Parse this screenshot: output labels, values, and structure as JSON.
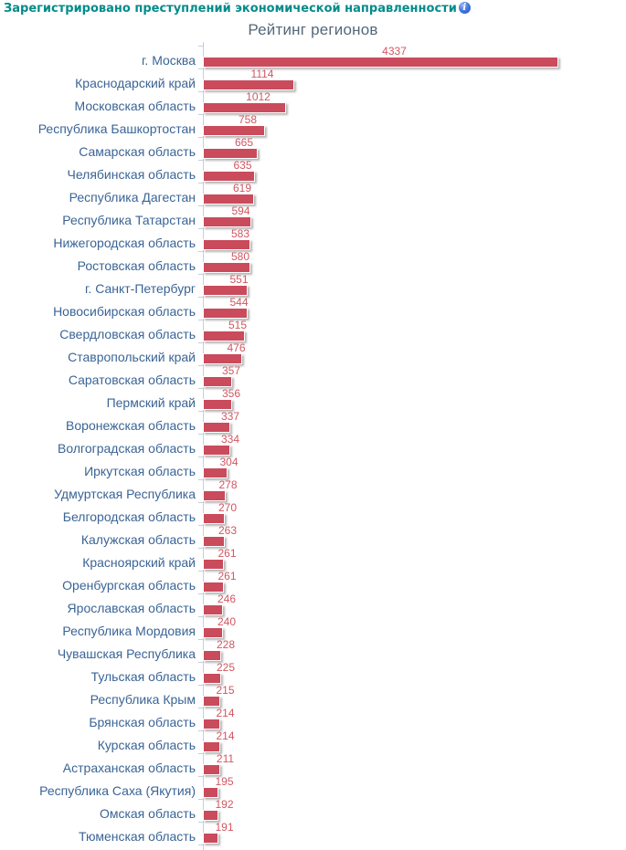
{
  "header": {
    "label": "Зарегистрировано преступлений экономической направленности",
    "info_icon_glyph": "i"
  },
  "chart_data": {
    "type": "bar",
    "orientation": "horizontal",
    "title": "Рейтинг регионов",
    "categories": [
      "г. Москва",
      "Краснодарский край",
      "Московская область",
      "Республика Башкортостан",
      "Самарская область",
      "Челябинская область",
      "Республика Дагестан",
      "Республика Татарстан",
      "Нижегородская область",
      "Ростовская область",
      "г. Санкт-Петербург",
      "Новосибирская область",
      "Свердловская область",
      "Ставропольский край",
      "Саратовская область",
      "Пермский край",
      "Воронежская область",
      "Волгоградская область",
      "Иркутская область",
      "Удмуртская Республика",
      "Белгородская область",
      "Калужская область",
      "Красноярский край",
      "Оренбургская область",
      "Ярославская область",
      "Республика Мордовия",
      "Чувашская Республика",
      "Тульская область",
      "Республика Крым",
      "Брянская область",
      "Курская область",
      "Астраханская область",
      "Республика Саха (Якутия)",
      "Омская область",
      "Тюменская область"
    ],
    "values": [
      4337,
      1114,
      1012,
      758,
      665,
      635,
      619,
      594,
      583,
      580,
      551,
      544,
      515,
      476,
      357,
      356,
      337,
      334,
      304,
      278,
      270,
      263,
      261,
      261,
      246,
      240,
      228,
      225,
      215,
      214,
      214,
      211,
      195,
      192,
      191
    ],
    "xlabel": "",
    "ylabel": "",
    "xlim": [
      0,
      4337
    ],
    "grid": false,
    "legend": false,
    "value_labels": true,
    "colors": {
      "bar": "#C94B5C",
      "value_label": "#D25661",
      "category_label": "#3A6496",
      "axis": "#C5CFDC",
      "header_accent": "#038B8B",
      "title": "#53687B",
      "info_icon": "#1D4FC4"
    }
  }
}
